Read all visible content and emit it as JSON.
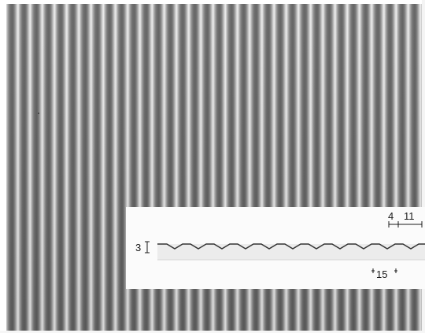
{
  "image": {
    "subject": "sem-micrograph-parallel-ribs",
    "colors": {
      "rib_light": "#eeeeee",
      "rib_dark": "#5e5e5e",
      "inset_background": "#fbfbfb",
      "profile_line": "#333333"
    }
  },
  "inset": {
    "labels": {
      "rib_width": "4",
      "groove_width": "11",
      "depth": "3",
      "period": "15"
    }
  }
}
